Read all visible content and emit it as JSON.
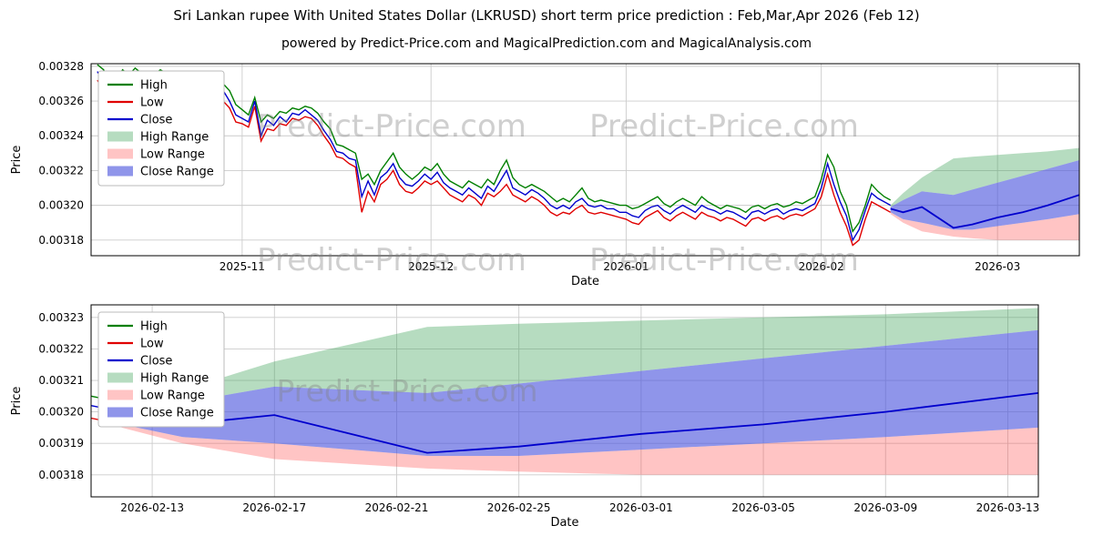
{
  "figure": {
    "title": "Sri Lankan rupee With United States Dollar (LKRUSD) short term price prediction : Feb,Mar,Apr 2026 (Feb 12)",
    "subtitle": "powered by Predict-Price.com and MagicalPrediction.com and MagicalAnalysis.com",
    "watermark": "Predict-Price.com"
  },
  "colors": {
    "high": "#007f00",
    "low": "#e00000",
    "close": "#0000cd",
    "high_range": "rgba(45,155,75,0.35)",
    "low_range": "rgba(255,70,70,0.32)",
    "close_range": "rgba(68,78,220,0.60)",
    "grid": "#cccccc",
    "frame": "#000000",
    "tick_text": "#000000",
    "watermark": "rgba(128,128,128,0.38)"
  },
  "chart_data": [
    {
      "type": "line",
      "title": "",
      "xlabel": "Date",
      "ylabel": "Price",
      "xlim": [
        "2025-10-08",
        "2026-03-14"
      ],
      "ylim": [
        0.003171,
        0.0032815
      ],
      "grid": true,
      "legend_position": "upper-left",
      "x_ticks": [
        {
          "date": "2025-11-01",
          "label": "2025-11"
        },
        {
          "date": "2025-12-01",
          "label": "2025-12"
        },
        {
          "date": "2026-01-01",
          "label": "2026-01"
        },
        {
          "date": "2026-02-01",
          "label": "2026-02"
        },
        {
          "date": "2026-03-01",
          "label": "2026-03"
        }
      ],
      "y_ticks": [
        0.00318,
        0.0032,
        0.00322,
        0.00324,
        0.00326,
        0.00328
      ],
      "legend": [
        {
          "label": "High",
          "swatch": "line",
          "color": "high"
        },
        {
          "label": "Low",
          "swatch": "line",
          "color": "low"
        },
        {
          "label": "Close",
          "swatch": "line",
          "color": "close"
        },
        {
          "label": "High Range",
          "swatch": "patch",
          "color": "high_range"
        },
        {
          "label": "Low Range",
          "swatch": "patch",
          "color": "low_range"
        },
        {
          "label": "Close Range",
          "swatch": "patch",
          "color": "close_range"
        }
      ],
      "historical": {
        "start_date": "2025-10-09",
        "step_days": 1,
        "high": [
          0.003281,
          0.003278,
          0.003266,
          0.003272,
          0.003278,
          0.003275,
          0.003279,
          0.003276,
          0.003272,
          0.003275,
          0.003278,
          0.003276,
          0.003272,
          0.003274,
          0.00327,
          0.003266,
          0.00327,
          0.003272,
          0.003268,
          0.003264,
          0.00327,
          0.003266,
          0.003258,
          0.003255,
          0.003252,
          0.003262,
          0.003248,
          0.003252,
          0.00325,
          0.003254,
          0.003253,
          0.003256,
          0.003255,
          0.003257,
          0.003256,
          0.003253,
          0.003248,
          0.003244,
          0.003235,
          0.003234,
          0.003232,
          0.00323,
          0.003215,
          0.003218,
          0.003212,
          0.00322,
          0.003225,
          0.00323,
          0.003222,
          0.003218,
          0.003215,
          0.003218,
          0.003222,
          0.00322,
          0.003224,
          0.003218,
          0.003214,
          0.003212,
          0.00321,
          0.003214,
          0.003212,
          0.00321,
          0.003215,
          0.003212,
          0.00322,
          0.003226,
          0.003216,
          0.003212,
          0.00321,
          0.003212,
          0.00321,
          0.003208,
          0.003205,
          0.003202,
          0.003204,
          0.003202,
          0.003206,
          0.00321,
          0.003204,
          0.003202,
          0.003203,
          0.003202,
          0.003201,
          0.0032,
          0.0032,
          0.003198,
          0.003199,
          0.003201,
          0.003203,
          0.003205,
          0.003201,
          0.003199,
          0.003202,
          0.003204,
          0.003202,
          0.0032,
          0.003205,
          0.003202,
          0.0032,
          0.003198,
          0.0032,
          0.003199,
          0.003198,
          0.003196,
          0.003199,
          0.0032,
          0.003198,
          0.0032,
          0.003201,
          0.003199,
          0.0032,
          0.003202,
          0.003201,
          0.003203,
          0.003205,
          0.003215,
          0.003229,
          0.003222,
          0.003208,
          0.0032,
          0.003185,
          0.00319,
          0.0032,
          0.003212,
          0.003208,
          0.003205,
          0.003203
        ],
        "low": [
          0.003272,
          0.003266,
          0.003254,
          0.00326,
          0.003268,
          0.003264,
          0.00327,
          0.003265,
          0.003262,
          0.003266,
          0.00327,
          0.003267,
          0.003263,
          0.003265,
          0.00326,
          0.003256,
          0.003262,
          0.003262,
          0.003258,
          0.003252,
          0.00326,
          0.003256,
          0.003248,
          0.003247,
          0.003245,
          0.003257,
          0.003237,
          0.003244,
          0.003243,
          0.003247,
          0.003246,
          0.00325,
          0.003249,
          0.003251,
          0.00325,
          0.003246,
          0.00324,
          0.003235,
          0.003228,
          0.003227,
          0.003224,
          0.003222,
          0.003196,
          0.003208,
          0.003202,
          0.003212,
          0.003215,
          0.00322,
          0.003212,
          0.003208,
          0.003207,
          0.00321,
          0.003214,
          0.003212,
          0.003214,
          0.00321,
          0.003206,
          0.003204,
          0.003202,
          0.003206,
          0.003204,
          0.0032,
          0.003207,
          0.003205,
          0.003208,
          0.003212,
          0.003206,
          0.003204,
          0.003202,
          0.003205,
          0.003203,
          0.0032,
          0.003196,
          0.003194,
          0.003196,
          0.003195,
          0.003198,
          0.0032,
          0.003196,
          0.003195,
          0.003196,
          0.003195,
          0.003194,
          0.003193,
          0.003192,
          0.00319,
          0.003189,
          0.003193,
          0.003195,
          0.003197,
          0.003193,
          0.003191,
          0.003194,
          0.003196,
          0.003194,
          0.003192,
          0.003196,
          0.003194,
          0.003193,
          0.003191,
          0.003193,
          0.003192,
          0.00319,
          0.003188,
          0.003192,
          0.003193,
          0.003191,
          0.003193,
          0.003194,
          0.003192,
          0.003194,
          0.003195,
          0.003194,
          0.003196,
          0.003198,
          0.003205,
          0.003218,
          0.003206,
          0.003196,
          0.003188,
          0.003177,
          0.00318,
          0.003192,
          0.003202,
          0.0032,
          0.003198,
          0.003196
        ],
        "close": [
          0.003277,
          0.00327,
          0.003258,
          0.003268,
          0.003274,
          0.003268,
          0.003276,
          0.00327,
          0.003266,
          0.003272,
          0.003274,
          0.00327,
          0.003268,
          0.00327,
          0.003264,
          0.00326,
          0.003266,
          0.003267,
          0.003262,
          0.003256,
          0.003266,
          0.00326,
          0.003252,
          0.00325,
          0.003248,
          0.00326,
          0.00324,
          0.003249,
          0.003246,
          0.003251,
          0.003248,
          0.003253,
          0.003252,
          0.003255,
          0.003252,
          0.003249,
          0.003243,
          0.003238,
          0.003231,
          0.00323,
          0.003227,
          0.003226,
          0.003205,
          0.003214,
          0.003206,
          0.003216,
          0.003219,
          0.003224,
          0.003216,
          0.003212,
          0.003211,
          0.003214,
          0.003218,
          0.003215,
          0.003219,
          0.003213,
          0.00321,
          0.003208,
          0.003206,
          0.00321,
          0.003207,
          0.003204,
          0.003211,
          0.003208,
          0.003214,
          0.00322,
          0.00321,
          0.003208,
          0.003206,
          0.003209,
          0.003207,
          0.003204,
          0.0032,
          0.003198,
          0.0032,
          0.003198,
          0.003202,
          0.003204,
          0.0032,
          0.003199,
          0.0032,
          0.003198,
          0.003198,
          0.003196,
          0.003196,
          0.003194,
          0.003193,
          0.003197,
          0.003199,
          0.0032,
          0.003197,
          0.003195,
          0.003198,
          0.0032,
          0.003198,
          0.003196,
          0.0032,
          0.003198,
          0.003197,
          0.003195,
          0.003197,
          0.003196,
          0.003194,
          0.003192,
          0.003196,
          0.003197,
          0.003195,
          0.003197,
          0.003198,
          0.003195,
          0.003197,
          0.003198,
          0.003197,
          0.003199,
          0.003201,
          0.00321,
          0.003224,
          0.003212,
          0.003202,
          0.003194,
          0.00318,
          0.003186,
          0.003197,
          0.003207,
          0.003204,
          0.003202,
          0.0032
        ]
      },
      "forecast": {
        "dates": [
          "2026-02-12",
          "2026-02-14",
          "2026-02-17",
          "2026-02-22",
          "2026-02-25",
          "2026-03-01",
          "2026-03-05",
          "2026-03-09",
          "2026-03-14"
        ],
        "close": [
          0.003198,
          0.003196,
          0.003199,
          0.003187,
          0.003189,
          0.003193,
          0.003196,
          0.0032,
          0.003206
        ],
        "close_max": [
          0.003199,
          0.003203,
          0.003208,
          0.003206,
          0.003209,
          0.003213,
          0.003217,
          0.003221,
          0.003226
        ],
        "close_min": [
          0.003196,
          0.003192,
          0.00319,
          0.003186,
          0.003186,
          0.003188,
          0.00319,
          0.003192,
          0.003195
        ],
        "high_max": [
          0.0032,
          0.003207,
          0.003216,
          0.003227,
          0.003228,
          0.003229,
          0.00323,
          0.003231,
          0.003233
        ],
        "low_min": [
          0.003195,
          0.00319,
          0.003185,
          0.003182,
          0.003181,
          0.00318,
          0.00318,
          0.00318,
          0.00318
        ]
      }
    },
    {
      "type": "line",
      "title": "",
      "xlabel": "Date",
      "ylabel": "Price",
      "xlim": [
        "2026-02-11",
        "2026-03-14"
      ],
      "ylim": [
        0.003173,
        0.003234
      ],
      "grid": true,
      "legend_position": "upper-left",
      "x_ticks": [
        {
          "date": "2026-02-13",
          "label": "2026-02-13"
        },
        {
          "date": "2026-02-17",
          "label": "2026-02-17"
        },
        {
          "date": "2026-02-21",
          "label": "2026-02-21"
        },
        {
          "date": "2026-02-25",
          "label": "2026-02-25"
        },
        {
          "date": "2026-03-01",
          "label": "2026-03-01"
        },
        {
          "date": "2026-03-05",
          "label": "2026-03-05"
        },
        {
          "date": "2026-03-09",
          "label": "2026-03-09"
        },
        {
          "date": "2026-03-13",
          "label": "2026-03-13"
        }
      ],
      "y_ticks": [
        0.00318,
        0.00319,
        0.0032,
        0.00321,
        0.00322,
        0.00323
      ],
      "legend": [
        {
          "label": "High",
          "swatch": "line",
          "color": "high"
        },
        {
          "label": "Low",
          "swatch": "line",
          "color": "low"
        },
        {
          "label": "Close",
          "swatch": "line",
          "color": "close"
        },
        {
          "label": "High Range",
          "swatch": "patch",
          "color": "high_range"
        },
        {
          "label": "Low Range",
          "swatch": "patch",
          "color": "low_range"
        },
        {
          "label": "Close Range",
          "swatch": "patch",
          "color": "close_range"
        }
      ],
      "historical": {
        "start_date": "2026-02-11",
        "step_days": 1,
        "high": [
          0.003205,
          0.003203
        ],
        "low": [
          0.003198,
          0.003196
        ],
        "close": [
          0.003202,
          0.0032
        ]
      },
      "forecast": {
        "dates": [
          "2026-02-12",
          "2026-02-14",
          "2026-02-17",
          "2026-02-22",
          "2026-02-25",
          "2026-03-01",
          "2026-03-05",
          "2026-03-09",
          "2026-03-14"
        ],
        "close": [
          0.003198,
          0.003196,
          0.003199,
          0.003187,
          0.003189,
          0.003193,
          0.003196,
          0.0032,
          0.003206
        ],
        "close_max": [
          0.003199,
          0.003203,
          0.003208,
          0.003206,
          0.003209,
          0.003213,
          0.003217,
          0.003221,
          0.003226
        ],
        "close_min": [
          0.003196,
          0.003192,
          0.00319,
          0.003186,
          0.003186,
          0.003188,
          0.00319,
          0.003192,
          0.003195
        ],
        "high_max": [
          0.0032,
          0.003207,
          0.003216,
          0.003227,
          0.003228,
          0.003229,
          0.00323,
          0.003231,
          0.003233
        ],
        "low_min": [
          0.003195,
          0.00319,
          0.003185,
          0.003182,
          0.003181,
          0.00318,
          0.00318,
          0.00318,
          0.00318
        ]
      }
    }
  ]
}
